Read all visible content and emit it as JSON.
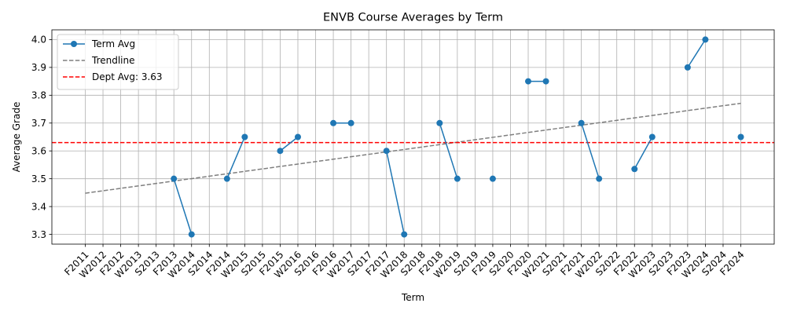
{
  "chart_data": {
    "type": "line",
    "title": "ENVB Course Averages by Term",
    "xlabel": "Term",
    "ylabel": "Average Grade",
    "ylim": [
      3.265,
      4.035
    ],
    "yticks": [
      3.3,
      3.4,
      3.5,
      3.6,
      3.7,
      3.8,
      3.9,
      4.0
    ],
    "ytick_labels": [
      "3.3",
      "3.4",
      "3.5",
      "3.6",
      "3.7",
      "3.8",
      "3.9",
      "4.0"
    ],
    "grid": true,
    "legend_position": "top-left",
    "categories": [
      "F2011",
      "W2012",
      "F2012",
      "W2013",
      "S2013",
      "F2013",
      "W2014",
      "S2014",
      "F2014",
      "W2015",
      "S2015",
      "F2015",
      "W2016",
      "S2016",
      "F2016",
      "W2017",
      "S2017",
      "F2017",
      "W2018",
      "S2018",
      "F2018",
      "W2019",
      "S2019",
      "F2019",
      "S2020",
      "F2020",
      "W2021",
      "S2021",
      "F2021",
      "W2022",
      "S2022",
      "F2022",
      "W2023",
      "S2023",
      "F2023",
      "W2024",
      "S2024",
      "F2024"
    ],
    "series": [
      {
        "name": "Term Avg",
        "color": "#1f77b4",
        "style": "solid-with-markers",
        "values": [
          null,
          null,
          null,
          null,
          null,
          3.5,
          3.3,
          null,
          3.5,
          3.65,
          null,
          3.6,
          3.65,
          null,
          3.7,
          3.7,
          null,
          3.6,
          3.3,
          null,
          3.7,
          3.5,
          null,
          3.5,
          null,
          3.85,
          3.85,
          null,
          3.7,
          3.5,
          null,
          3.535,
          3.65,
          null,
          3.9,
          4.0,
          null,
          3.65
        ]
      },
      {
        "name": "Trendline",
        "color": "#7f7f7f",
        "style": "dashed",
        "start": 3.448,
        "end": 3.771
      },
      {
        "name": "Dept Avg: 3.63",
        "color": "#ff0000",
        "style": "dashed",
        "value": 3.63
      }
    ]
  }
}
